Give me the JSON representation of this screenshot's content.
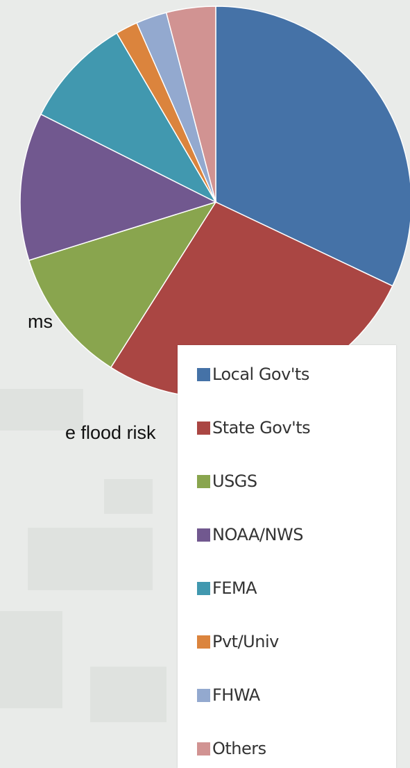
{
  "background_text": {
    "line1": "ms",
    "line2": "e flood risk"
  },
  "chart_data": {
    "type": "pie",
    "title": "",
    "legend_position": "right",
    "labels": [
      "Local Gov'ts",
      "State Gov'ts",
      "USGS",
      "NOAA/NWS",
      "FEMA",
      "Pvt/Univ",
      "FHWA",
      "Others"
    ],
    "values": [
      31.5,
      26.5,
      11.0,
      12.0,
      9.0,
      1.8,
      2.5,
      4.0
    ],
    "colors": [
      "#4572a7",
      "#aa4643",
      "#89a54e",
      "#71588f",
      "#4198af",
      "#db843d",
      "#93a9cf",
      "#d19392"
    ]
  }
}
